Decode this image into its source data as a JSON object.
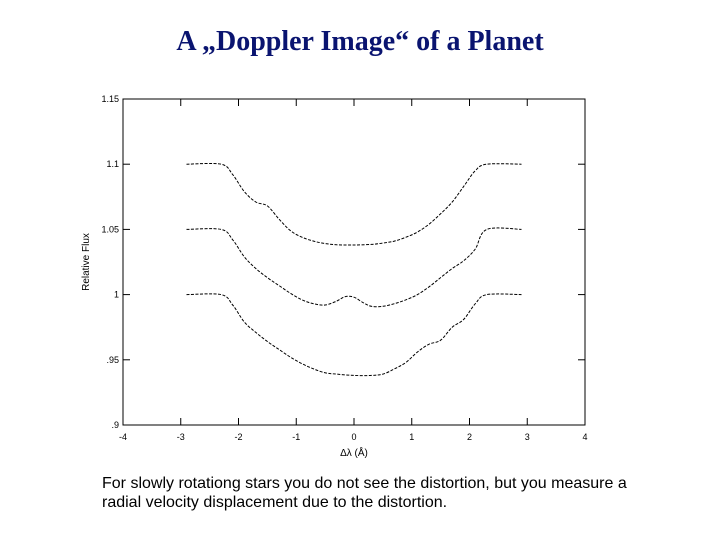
{
  "slide": {
    "title": "A „Doppler Image“ of a Planet",
    "caption": "For slowly rotationg stars you do not see the distortion, but you measure a radial velocity displacement due to the distortion."
  },
  "chart_data": {
    "type": "line",
    "title": "",
    "xlabel": "Δλ (Å)",
    "ylabel": "Relative Flux",
    "xlim": [
      -4,
      4
    ],
    "ylim": [
      0.9,
      1.15
    ],
    "x_ticks": [
      -4,
      -3,
      -2,
      -1,
      0,
      1,
      2,
      3,
      4
    ],
    "x_tick_labels": [
      "-4",
      "-3",
      "-2",
      "-1",
      "0",
      "1",
      "2",
      "3",
      "4"
    ],
    "y_ticks": [
      0.9,
      0.95,
      1.0,
      1.05,
      1.1,
      1.15
    ],
    "y_tick_labels": [
      ".9",
      ".95",
      "1",
      "1.05",
      "1.1",
      "1.15"
    ],
    "grid": false,
    "line_style": "dashed",
    "series": [
      {
        "x": [
          -2.9,
          -2.3,
          -2.1,
          -1.9,
          -1.7,
          -1.5,
          -1.3,
          -1.1,
          -0.9,
          -0.7,
          -0.5,
          -0.3,
          0.0,
          0.3,
          0.5,
          0.7,
          0.9,
          1.1,
          1.3,
          1.5,
          1.7,
          1.9,
          2.1,
          2.3,
          2.9
        ],
        "y": [
          1.1,
          1.1,
          1.092,
          1.079,
          1.071,
          1.068,
          1.058,
          1.049,
          1.044,
          1.041,
          1.0392,
          1.0382,
          1.038,
          1.0385,
          1.0395,
          1.041,
          1.044,
          1.048,
          1.054,
          1.062,
          1.071,
          1.083,
          1.095,
          1.1,
          1.1
        ]
      },
      {
        "x": [
          -2.9,
          -2.3,
          -2.1,
          -1.9,
          -1.7,
          -1.5,
          -1.3,
          -1.1,
          -0.9,
          -0.7,
          -0.5,
          -0.3,
          -0.15,
          0.0,
          0.15,
          0.3,
          0.5,
          0.7,
          0.9,
          1.1,
          1.3,
          1.5,
          1.7,
          1.9,
          2.1,
          2.3,
          2.9
        ],
        "y": [
          1.05,
          1.05,
          1.042,
          1.029,
          1.02,
          1.013,
          1.007,
          1.001,
          0.996,
          0.993,
          0.992,
          0.995,
          0.9985,
          0.998,
          0.994,
          0.991,
          0.991,
          0.993,
          0.996,
          1.0,
          1.006,
          1.013,
          1.02,
          1.026,
          1.035,
          1.05,
          1.05
        ]
      },
      {
        "x": [
          -2.9,
          -2.3,
          -2.1,
          -1.9,
          -1.7,
          -1.5,
          -1.3,
          -1.1,
          -0.9,
          -0.7,
          -0.5,
          -0.3,
          0.0,
          0.3,
          0.5,
          0.7,
          0.9,
          1.1,
          1.3,
          1.5,
          1.7,
          1.9,
          2.1,
          2.3,
          2.9
        ],
        "y": [
          1.0,
          1.0,
          0.992,
          0.979,
          0.971,
          0.964,
          0.958,
          0.952,
          0.947,
          0.943,
          0.94,
          0.939,
          0.938,
          0.938,
          0.939,
          0.943,
          0.948,
          0.956,
          0.962,
          0.965,
          0.975,
          0.981,
          0.993,
          1.0,
          1.0
        ]
      }
    ]
  }
}
